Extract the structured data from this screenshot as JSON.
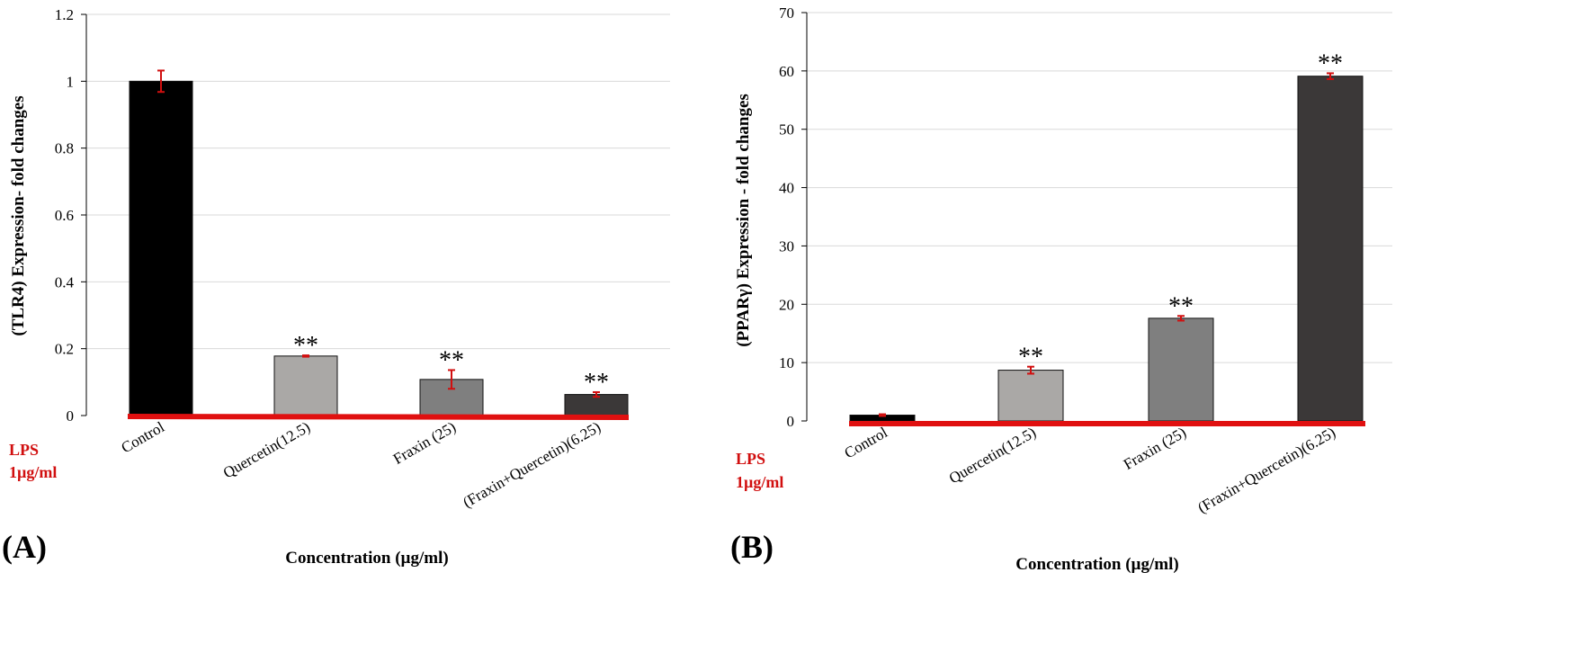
{
  "chart_data": [
    {
      "type": "bar",
      "panel_label": "(A)",
      "ylabel": "(TLR4) Expression- fold changes",
      "xlabel": "Concentration (µg/ml)",
      "treatment_label": [
        "LPS",
        "1µg/ml"
      ],
      "categories": [
        "Control",
        "Quercetin(12.5)",
        "Fraxin (25)",
        "(Fraxin+Quercetin)(6.25)"
      ],
      "values": [
        1.0,
        0.178,
        0.108,
        0.063
      ],
      "errors": [
        0.032,
        0.002,
        0.028,
        0.007
      ],
      "significance": [
        "",
        "**",
        "**",
        "**"
      ],
      "bar_colors": [
        "#000000",
        "#aaa8a6",
        "#7f7f7f",
        "#3b3838"
      ],
      "error_color": "#d10f0f",
      "baseline_color": "#e01010",
      "ylim": [
        0,
        1.2
      ],
      "yticks": [
        0,
        0.2,
        0.4,
        0.6,
        0.8,
        1,
        1.2
      ],
      "ytick_labels": [
        "0",
        "0.2",
        "0.4",
        "0.6",
        "0.8",
        "1",
        "1.2"
      ],
      "grid": true
    },
    {
      "type": "bar",
      "panel_label": "(B)",
      "ylabel": "(PPARγ)  Expression - fold changes",
      "xlabel": "Concentration (µg/ml)",
      "treatment_label": [
        "LPS",
        "1µg/ml"
      ],
      "categories": [
        "Control",
        "Quercetin(12.5)",
        "Fraxin (25)",
        "(Fraxin+Quercetin)(6.25)"
      ],
      "values": [
        1.0,
        8.7,
        17.6,
        59.1
      ],
      "errors": [
        0.15,
        0.6,
        0.4,
        0.5
      ],
      "significance": [
        "",
        "**",
        "**",
        "**"
      ],
      "bar_colors": [
        "#000000",
        "#aaa8a6",
        "#7f7f7f",
        "#3b3838"
      ],
      "error_color": "#d10f0f",
      "baseline_color": "#e01010",
      "ylim": [
        0,
        70
      ],
      "yticks": [
        0,
        10,
        20,
        30,
        40,
        50,
        60,
        70
      ],
      "ytick_labels": [
        "0",
        "10",
        "20",
        "30",
        "40",
        "50",
        "60",
        "70"
      ],
      "grid": true
    }
  ]
}
